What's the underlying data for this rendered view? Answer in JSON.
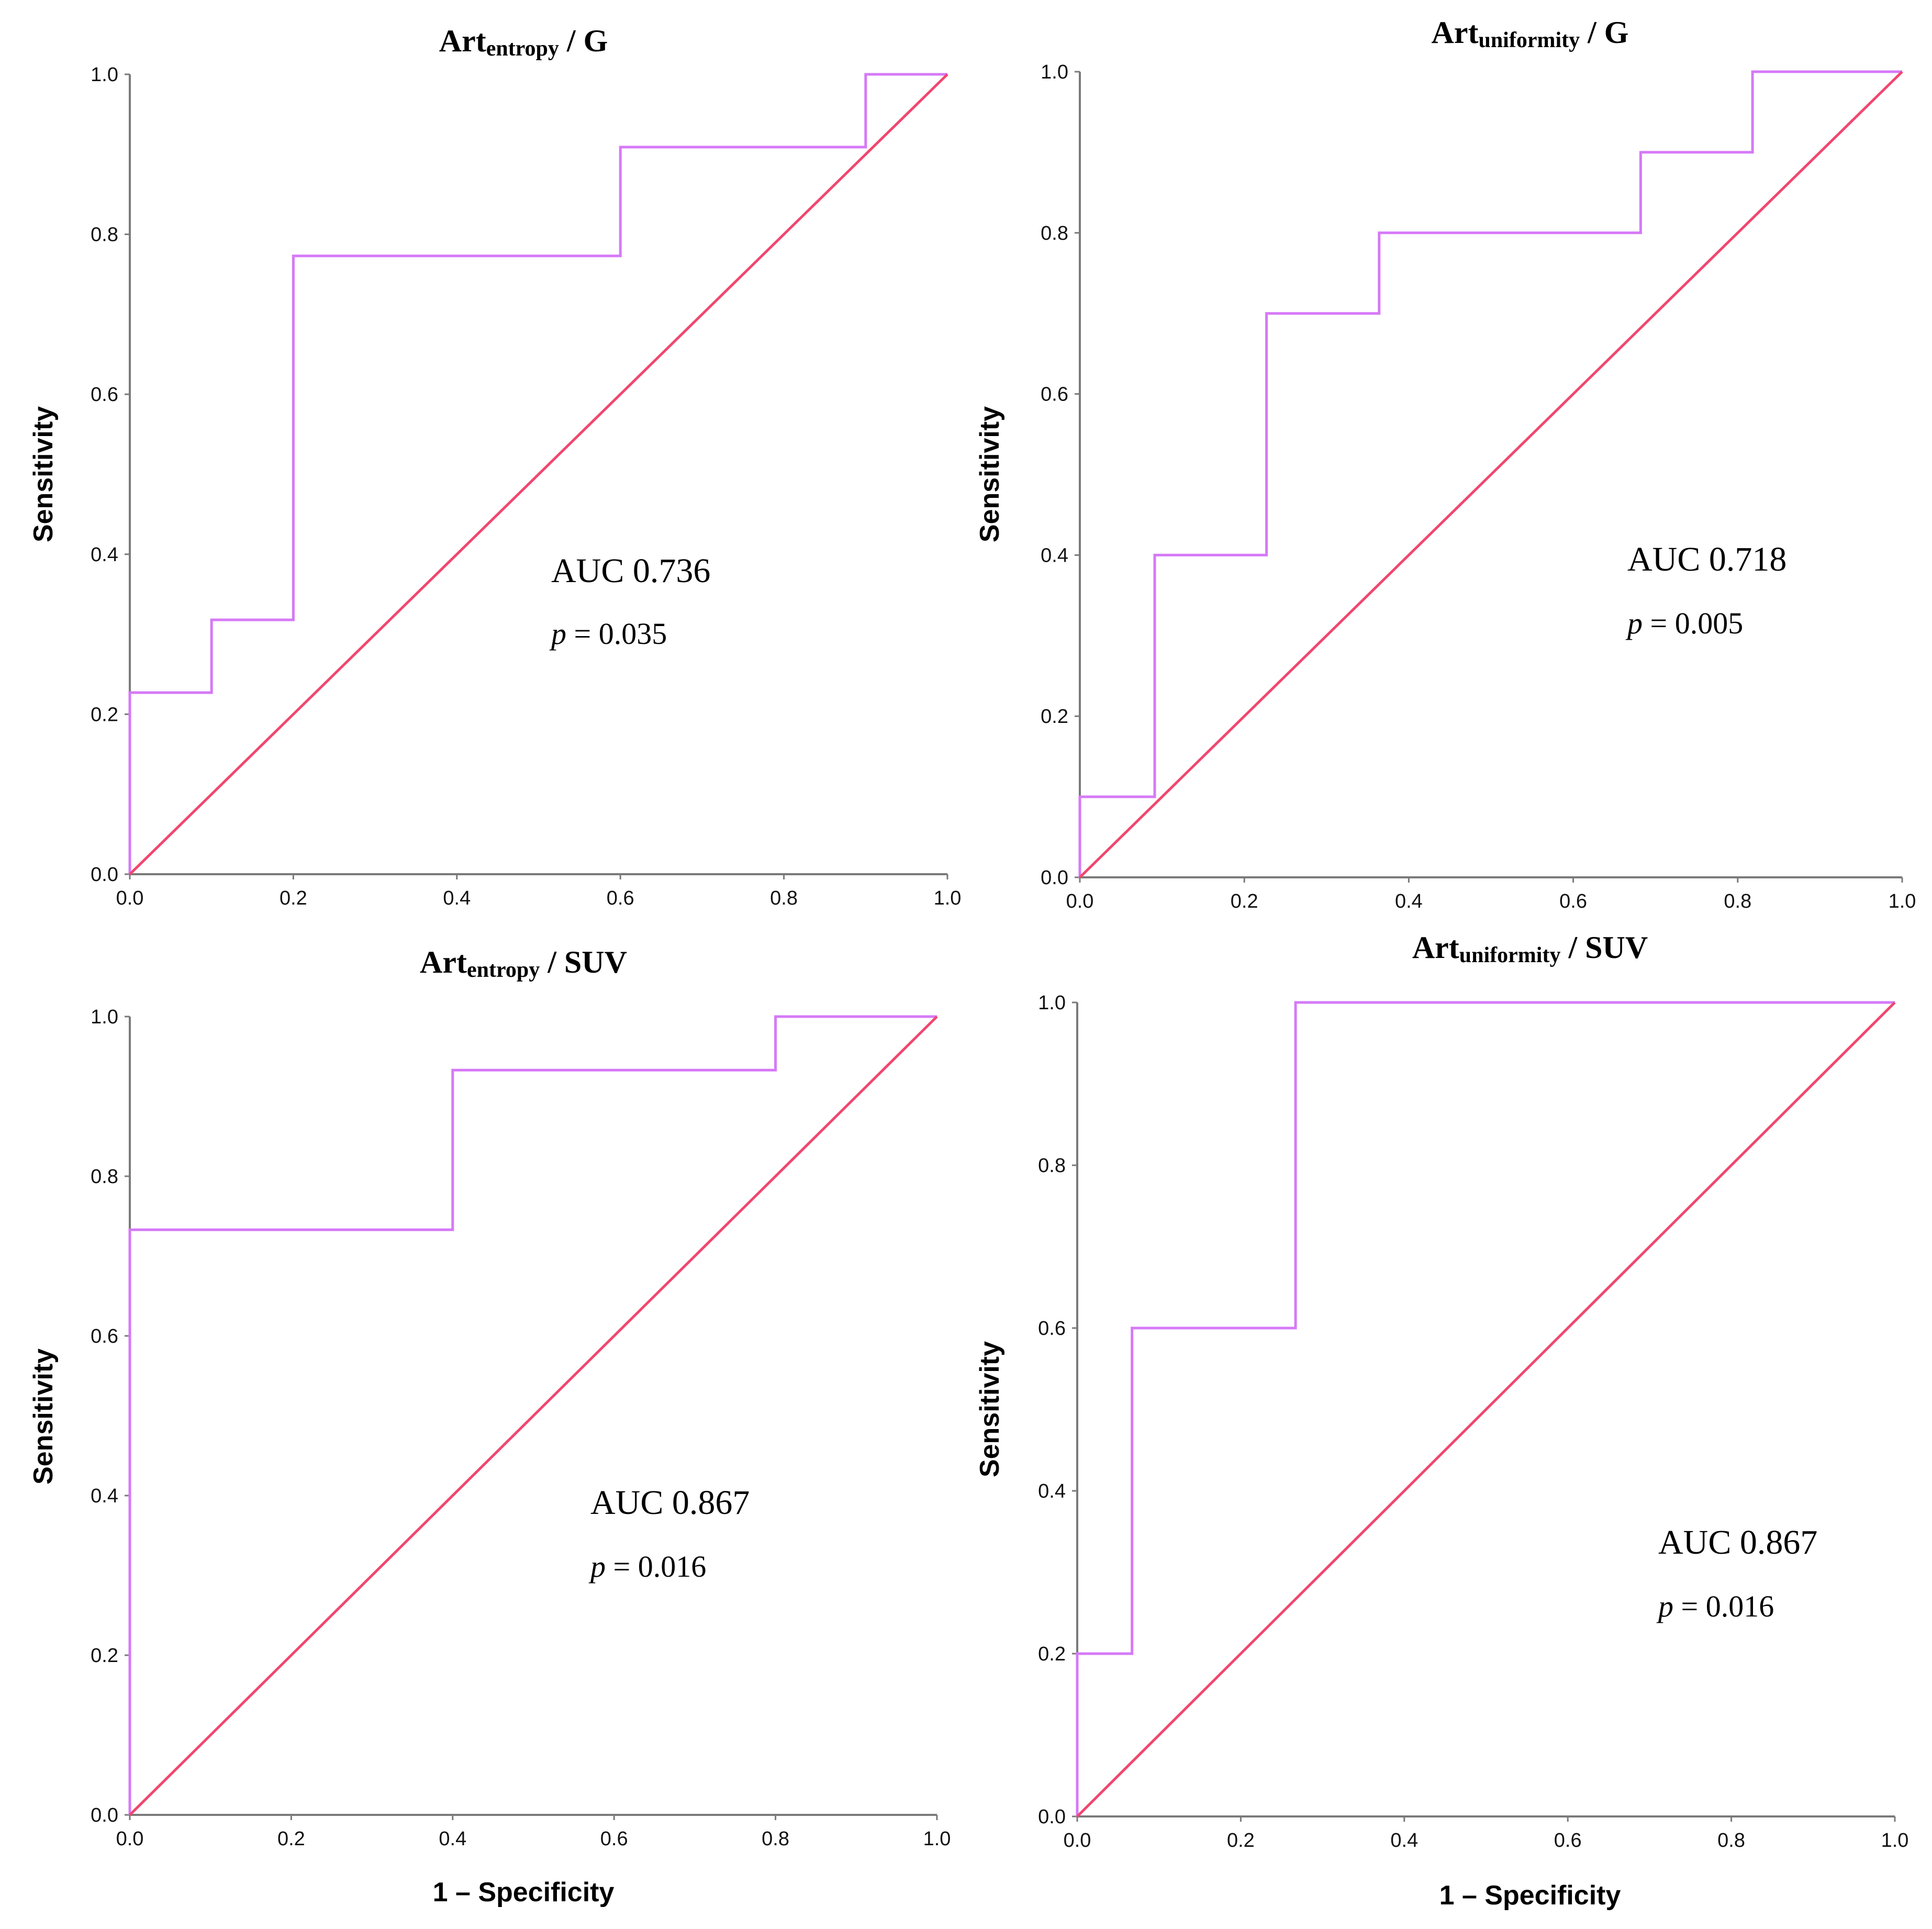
{
  "figure": {
    "x_axis_label": "1 – Specificity",
    "y_axis_label": "Sensitivity",
    "colors": {
      "roc_curve": "#d679f7",
      "reference_line": "#f0476f",
      "axis": "#7a7a7a"
    }
  },
  "chart_data": [
    {
      "type": "line",
      "title_main": "Art",
      "title_sub": "entropy",
      "title_suffix": " / G",
      "xlabel": "",
      "ylabel": "Sensitivity",
      "xlim": [
        0,
        1
      ],
      "ylim": [
        0,
        1
      ],
      "x_ticks": [
        "0.0",
        "0.2",
        "0.4",
        "0.6",
        "0.8",
        "1.0"
      ],
      "y_ticks": [
        "0.0",
        "0.2",
        "0.4",
        "0.6",
        "0.8",
        "1.0"
      ],
      "series": [
        {
          "name": "ROC",
          "x": [
            0,
            0,
            0.1,
            0.1,
            0.2,
            0.2,
            0.6,
            0.6,
            0.9,
            0.9,
            1.0
          ],
          "y": [
            0,
            0.227,
            0.227,
            0.318,
            0.318,
            0.773,
            0.773,
            0.909,
            0.909,
            1.0,
            1.0
          ]
        },
        {
          "name": "Reference",
          "x": [
            0,
            1
          ],
          "y": [
            0,
            1
          ]
        }
      ],
      "annotation": {
        "auc": "AUC 0.736",
        "p_symbol": "p",
        "p_value": " = 0.035"
      }
    },
    {
      "type": "line",
      "title_main": "Art",
      "title_sub": "uniformity",
      "title_suffix": " / G",
      "xlabel": "",
      "ylabel": "Sensitivity",
      "xlim": [
        0,
        1
      ],
      "ylim": [
        0,
        1
      ],
      "x_ticks": [
        "0.0",
        "0.2",
        "0.4",
        "0.6",
        "0.8",
        "1.0"
      ],
      "y_ticks": [
        "0.0",
        "0.2",
        "0.4",
        "0.6",
        "0.8",
        "1.0"
      ],
      "series": [
        {
          "name": "ROC",
          "x": [
            0,
            0,
            0.091,
            0.091,
            0.227,
            0.227,
            0.364,
            0.364,
            0.682,
            0.682,
            0.818,
            0.818,
            1.0
          ],
          "y": [
            0,
            0.1,
            0.1,
            0.4,
            0.4,
            0.7,
            0.7,
            0.8,
            0.8,
            0.9,
            0.9,
            1.0,
            1.0
          ]
        },
        {
          "name": "Reference",
          "x": [
            0,
            1
          ],
          "y": [
            0,
            1
          ]
        }
      ],
      "annotation": {
        "auc": "AUC 0.718",
        "p_symbol": "p",
        "p_value": " = 0.005"
      }
    },
    {
      "type": "line",
      "title_main": "Art",
      "title_sub": "entropy",
      "title_suffix": " / SUV",
      "xlabel": "1 – Specificity",
      "ylabel": "Sensitivity",
      "xlim": [
        0,
        1
      ],
      "ylim": [
        0,
        1
      ],
      "x_ticks": [
        "0.0",
        "0.2",
        "0.4",
        "0.6",
        "0.8",
        "1.0"
      ],
      "y_ticks": [
        "0.0",
        "0.2",
        "0.4",
        "0.6",
        "0.8",
        "1.0"
      ],
      "series": [
        {
          "name": "ROC",
          "x": [
            0,
            0,
            0.4,
            0.4,
            0.8,
            0.8,
            1.0
          ],
          "y": [
            0,
            0.733,
            0.733,
            0.933,
            0.933,
            1.0,
            1.0
          ]
        },
        {
          "name": "Reference",
          "x": [
            0,
            1
          ],
          "y": [
            0,
            1
          ]
        }
      ],
      "annotation": {
        "auc": "AUC 0.867",
        "p_symbol": "p",
        "p_value": " = 0.016"
      }
    },
    {
      "type": "line",
      "title_main": "Art",
      "title_sub": "uniformity",
      "title_suffix": " / SUV",
      "xlabel": "1 – Specificity",
      "ylabel": "Sensitivity",
      "xlim": [
        0,
        1
      ],
      "ylim": [
        0,
        1
      ],
      "x_ticks": [
        "0.0",
        "0.2",
        "0.4",
        "0.6",
        "0.8",
        "1.0"
      ],
      "y_ticks": [
        "0.0",
        "0.2",
        "0.4",
        "0.6",
        "0.8",
        "1.0"
      ],
      "series": [
        {
          "name": "ROC",
          "x": [
            0,
            0,
            0.067,
            0.067,
            0.267,
            0.267,
            1.0
          ],
          "y": [
            0,
            0.2,
            0.2,
            0.6,
            0.6,
            1.0,
            1.0
          ]
        },
        {
          "name": "Reference",
          "x": [
            0,
            1
          ],
          "y": [
            0,
            1
          ]
        }
      ],
      "annotation": {
        "auc": "AUC 0.867",
        "p_symbol": "p",
        "p_value": " = 0.016"
      }
    }
  ]
}
